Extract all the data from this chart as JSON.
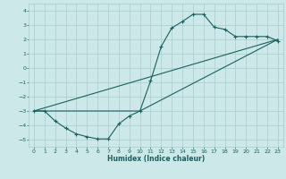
{
  "xlabel": "Humidex (Indice chaleur)",
  "ylabel": "",
  "xlim": [
    -0.5,
    23.5
  ],
  "ylim": [
    -5.5,
    4.5
  ],
  "xticks": [
    0,
    1,
    2,
    3,
    4,
    5,
    6,
    7,
    8,
    9,
    10,
    11,
    12,
    13,
    14,
    15,
    16,
    17,
    18,
    19,
    20,
    21,
    22,
    23
  ],
  "yticks": [
    -5,
    -4,
    -3,
    -2,
    -1,
    0,
    1,
    2,
    3,
    4
  ],
  "bg_color": "#cce8e8",
  "grid_color": "#aacccc",
  "line_color": "#1a6060",
  "line1_x": [
    0,
    1,
    2,
    3,
    4,
    5,
    6,
    7,
    8,
    9,
    10,
    11,
    12,
    13,
    14,
    15,
    16,
    17,
    18,
    19,
    20,
    21,
    22,
    23
  ],
  "line1_y": [
    -3.0,
    -3.0,
    -3.7,
    -4.2,
    -4.6,
    -4.8,
    -4.95,
    -4.95,
    -3.9,
    -3.35,
    -3.0,
    -0.9,
    1.5,
    2.8,
    3.25,
    3.75,
    3.75,
    2.85,
    2.7,
    2.2,
    2.2,
    2.2,
    2.2,
    1.9
  ],
  "line2_x": [
    0,
    23
  ],
  "line2_y": [
    -3.0,
    2.0
  ],
  "line3_x": [
    0,
    10,
    23
  ],
  "line3_y": [
    -3.0,
    -3.0,
    2.0
  ]
}
